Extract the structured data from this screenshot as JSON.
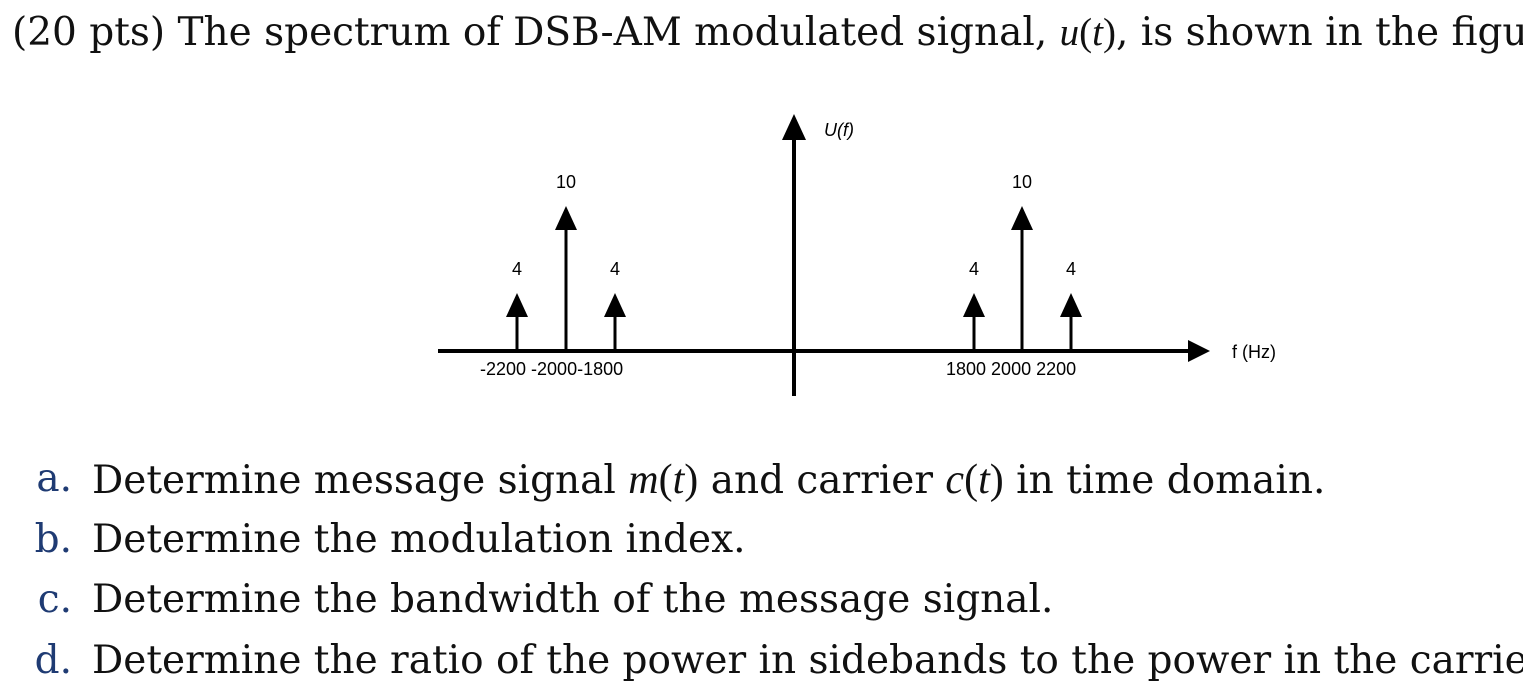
{
  "problem": {
    "lead": "(20 pts) The spectrum of DSB-AM modulated signal, ",
    "signal": "u",
    "paren_open": "(",
    "var": "t",
    "paren_close": ")",
    "tail": ", is shown in the figure."
  },
  "chart_data": {
    "type": "stem",
    "ylabel": "U(f)",
    "xlabel": "f (Hz)",
    "x_tick_labels": [
      "-2200",
      "-2000",
      "-1800",
      "1800",
      "2000",
      "2200"
    ],
    "impulses": [
      {
        "f": -2200,
        "amplitude": 4
      },
      {
        "f": -2000,
        "amplitude": 10
      },
      {
        "f": -1800,
        "amplitude": 4
      },
      {
        "f": 1800,
        "amplitude": 4
      },
      {
        "f": 2000,
        "amplitude": 10
      },
      {
        "f": 2200,
        "amplitude": 4
      }
    ],
    "neg_tick_text": "-2200 -2000-1800",
    "pos_tick_text": "1800 2000 2200"
  },
  "questions": [
    {
      "marker": "a.",
      "parts": [
        {
          "t": "Determine message signal ",
          "s": "text"
        },
        {
          "t": "m",
          "s": "math"
        },
        {
          "t": "(",
          "s": "up"
        },
        {
          "t": "t",
          "s": "math"
        },
        {
          "t": ")",
          "s": "up"
        },
        {
          "t": " and carrier ",
          "s": "text"
        },
        {
          "t": "c",
          "s": "math"
        },
        {
          "t": "(",
          "s": "up"
        },
        {
          "t": "t",
          "s": "math"
        },
        {
          "t": ")",
          "s": "up"
        },
        {
          "t": " in time domain.",
          "s": "text"
        }
      ]
    },
    {
      "marker": "b.",
      "parts": [
        {
          "t": "Determine the modulation index.",
          "s": "text"
        }
      ]
    },
    {
      "marker": "c.",
      "parts": [
        {
          "t": "Determine the bandwidth of the message signal.",
          "s": "text"
        }
      ]
    },
    {
      "marker": "d.",
      "parts": [
        {
          "t": "Determine the ratio of the power in sidebands to the power in the carrier.",
          "s": "text"
        }
      ]
    }
  ]
}
